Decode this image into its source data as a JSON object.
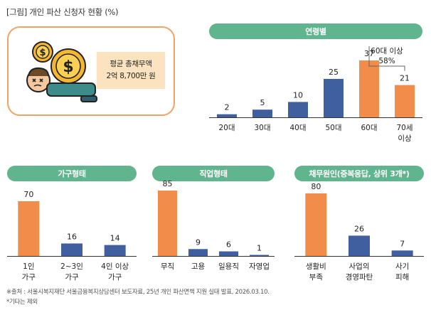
{
  "figure": {
    "title": "[그림] 개인 파산 신청자 현황 (%)",
    "avg_debt_label_line1": "평균 총채무액",
    "avg_debt_label_line2": "2억 8,700만 원",
    "footnote1": "※출처 : 서울시복지재단 서울금융복지상담센터 보도자료, 25년 개인 파산면책 지원 실태 발표, 2026.03.10.",
    "footnote2": "*기타는 제외"
  },
  "colors": {
    "orange": "#f28c4a",
    "blue": "#3f5f9e",
    "green": "#61b58e",
    "box_border": "#f2a267",
    "label_bg": "#fbe3bf"
  },
  "chart_data": [
    {
      "id": "age",
      "type": "bar",
      "title": "연령별",
      "categories": [
        "20대",
        "30대",
        "40대",
        "50대",
        "60대",
        "70세|이상"
      ],
      "values": [
        2,
        5,
        10,
        25,
        37,
        21
      ],
      "highlight": [
        false,
        false,
        false,
        false,
        true,
        true
      ],
      "ylim": [
        0,
        60
      ],
      "annotation": {
        "line1": "60대 이상",
        "line2": "58%",
        "spans": [
          4,
          5
        ]
      }
    },
    {
      "id": "household",
      "type": "bar",
      "title": "가구형태",
      "categories": [
        "1인|가구",
        "2~3인|가구",
        "4인 이상|가구"
      ],
      "values": [
        70,
        16,
        14
      ],
      "highlight": [
        true,
        false,
        false
      ],
      "ylim": [
        0,
        100
      ]
    },
    {
      "id": "job",
      "type": "bar",
      "title": "직업형태",
      "categories": [
        "무직",
        "고용",
        "일용직",
        "자영업"
      ],
      "values": [
        85,
        9,
        6,
        1
      ],
      "highlight": [
        true,
        false,
        false,
        false
      ],
      "ylim": [
        0,
        100
      ]
    },
    {
      "id": "cause",
      "type": "bar",
      "title": "채무원인(중복응답, 상위 3개*)",
      "categories": [
        "생활비|부족",
        "사업의|경영파탄",
        "사기|피해"
      ],
      "values": [
        80,
        26,
        7
      ],
      "highlight": [
        true,
        false,
        false
      ],
      "ylim": [
        0,
        100
      ]
    }
  ]
}
